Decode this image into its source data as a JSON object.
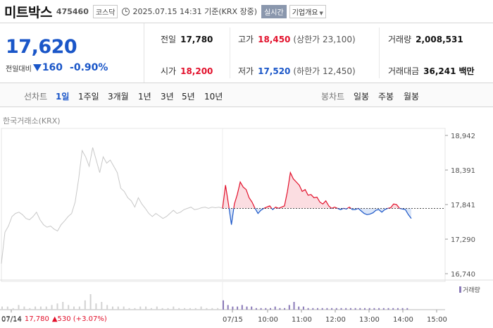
{
  "stock": {
    "name": "미트박스",
    "code": "475460",
    "market": "코스닥",
    "as_of": "2025.07.15 14:31 기준(KRX 장중)",
    "realtime_label": "실시간",
    "company_button": "기업개요"
  },
  "price": {
    "current": "17,620",
    "diff_label": "전일대비",
    "diff_value": "160",
    "diff_pct": "-0.90%"
  },
  "stats": {
    "prev_close_label": "전일",
    "prev_close": "17,780",
    "open_label": "시가",
    "open": "18,200",
    "high_label": "고가",
    "high": "18,450",
    "upper_limit": "(상한가 23,100)",
    "low_label": "저가",
    "low": "17,520",
    "lower_limit": "(하한가 12,450)",
    "volume_label": "거래량",
    "volume": "2,008,531",
    "amount_label": "거래대금",
    "amount": "36,241",
    "amount_unit": "백만"
  },
  "tabs": {
    "line_chart_label": "선차트",
    "periods": [
      "1일",
      "1주일",
      "3개월",
      "1년",
      "3년",
      "5년",
      "10년"
    ],
    "active_period": "1일",
    "candle_chart_label": "봉차트",
    "candle_periods": [
      "일봉",
      "주봉",
      "월봉"
    ]
  },
  "chart_source": "한국거래소(KRX)",
  "chart_data": {
    "type": "line",
    "y_ticks": [
      18942,
      18391,
      17841,
      17290,
      16740
    ],
    "y_tick_labels": [
      "18,942",
      "18,391",
      "17,841",
      "17,290",
      "16,740"
    ],
    "ylim": [
      16740,
      18942
    ],
    "reference_price": 17780,
    "x_tick_labels": [
      "07/14",
      "07/15",
      "10:00",
      "11:00",
      "12:00",
      "13:00",
      "14:00",
      "15:00"
    ],
    "series": [
      {
        "values": [
          16900,
          17400,
          17500,
          17650,
          17700,
          17720,
          17680,
          17620,
          17600,
          17650,
          17720,
          17600,
          17520,
          17480,
          17500,
          17450,
          17420,
          17520,
          17580,
          17650,
          17700,
          17880,
          18250,
          18700,
          18600,
          18450,
          18750,
          18550,
          18350,
          18600,
          18500,
          18550,
          18450,
          18350,
          18100,
          18050,
          17950,
          17900,
          17800,
          17950,
          17850,
          17780,
          17700,
          17650,
          17700,
          17660,
          17620,
          17650,
          17700,
          17750,
          17700,
          17720,
          17760,
          17780,
          17800,
          17760,
          17770,
          17790,
          17800,
          17780,
          17800,
          17790,
          17800,
          17780
        ]
      },
      {
        "values": [
          17780,
          18150,
          17850,
          17520,
          17850,
          18000,
          18200,
          18120,
          18080,
          17950,
          17880,
          17780,
          17700,
          17750,
          17780,
          17800,
          17820,
          17760,
          17800,
          17780,
          17800,
          17820,
          18050,
          18350,
          18250,
          18200,
          18150,
          18050,
          18080,
          17990,
          18000,
          17950,
          17960,
          17880,
          17850,
          17900,
          17820,
          17780,
          17800,
          17780,
          17760,
          17780,
          17770,
          17800,
          17760,
          17760,
          17780,
          17740,
          17700,
          17680,
          17690,
          17710,
          17750,
          17760,
          17720,
          17760,
          17780,
          17790,
          17850,
          17840,
          17780,
          17770,
          17760,
          17680,
          17620
        ]
      }
    ]
  },
  "volume": {
    "legend": "거래량",
    "bars_day1": [
      2,
      2,
      1,
      3,
      2,
      1,
      2,
      2,
      2,
      3,
      4,
      5,
      3,
      2,
      2,
      6,
      10,
      4,
      5,
      3,
      2,
      2,
      2,
      1,
      1,
      2,
      2,
      1,
      2,
      1,
      1,
      2,
      1,
      1,
      1,
      1,
      2,
      1,
      1,
      1
    ],
    "bars_day2": [
      6,
      3,
      2,
      2,
      3,
      2,
      2,
      1,
      1,
      1,
      1,
      2,
      1,
      1,
      3,
      5,
      2,
      2,
      1,
      1,
      1,
      1,
      1,
      1,
      1,
      1,
      1,
      1,
      1,
      1,
      1,
      1,
      1,
      1,
      1,
      1,
      1,
      1,
      1,
      1
    ]
  },
  "footer": {
    "date": "07/14",
    "close": "17,780",
    "change": "▲530 (+3.07%)"
  },
  "colors": {
    "up": "#e2102b",
    "down": "#1a56c8",
    "history_line": "#c8c8c8",
    "volume": "#8a7ab8"
  }
}
